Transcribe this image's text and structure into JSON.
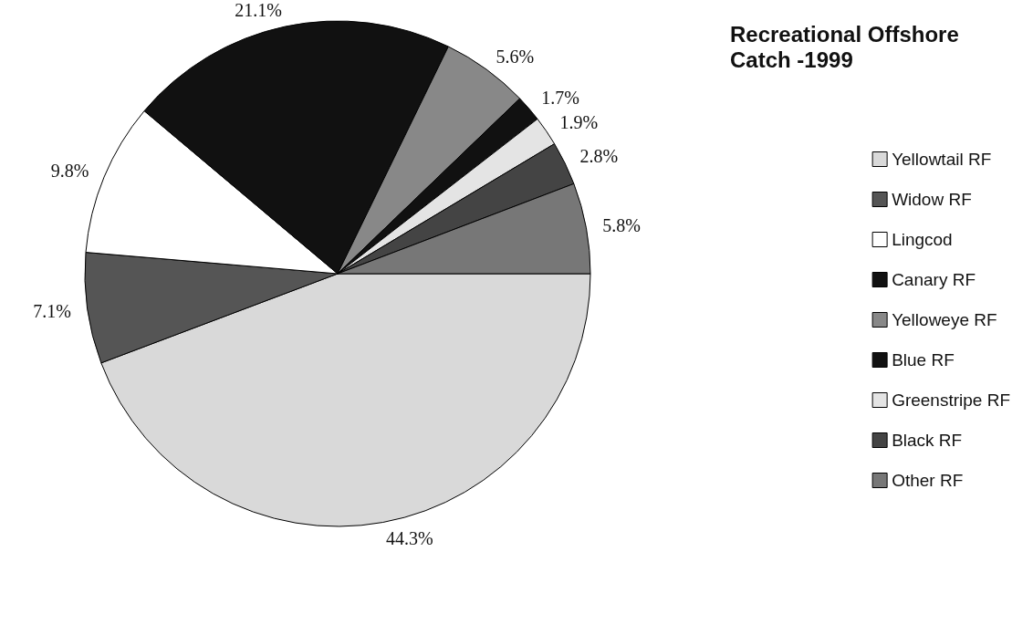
{
  "chart_data": {
    "type": "pie",
    "title": "Recreational Offshore\nCatch -1999",
    "categories": [
      "Yellowtail RF",
      "Widow RF",
      "Lingcod",
      "Canary RF",
      "Yelloweye RF",
      "Blue RF",
      "Greenstripe RF",
      "Black RF",
      "Other RF"
    ],
    "values": [
      44.3,
      7.1,
      9.8,
      21.1,
      5.6,
      1.7,
      1.9,
      2.8,
      5.8
    ],
    "value_labels": [
      "44.3%",
      "7.1%",
      "9.8%",
      "21.1%",
      "5.6%",
      "1.7%",
      "1.9%",
      "2.8%",
      "5.8%"
    ],
    "colors": [
      "#d9d9d9",
      "#555555",
      "#ffffff",
      "#111111",
      "#888888",
      "#111111",
      "#e4e4e4",
      "#444444",
      "#777777"
    ],
    "legend": "right"
  }
}
